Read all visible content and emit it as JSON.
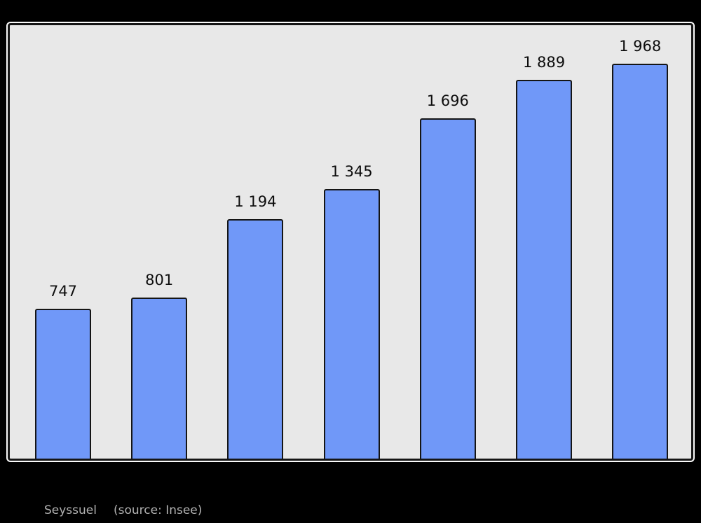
{
  "page": {
    "background": "#000000"
  },
  "chart_data": {
    "type": "bar",
    "title": "",
    "values": [
      747,
      801,
      1194,
      1345,
      1696,
      1889,
      1968
    ],
    "bar_labels": [
      "747",
      "801",
      "1 194",
      "1 345",
      "1 696",
      "1 889",
      "1 968"
    ],
    "ylim": [
      0,
      2160
    ],
    "xlabel": "",
    "ylabel": "",
    "grid": false,
    "legend": false,
    "axis_tick_labels_visible": false,
    "bar_color": "#7098f8",
    "bar_border_color": "#151515",
    "plot_background": "#e8e8e8",
    "frame_outline_color": "#fafafa",
    "label_color": "#0d0d0d"
  },
  "caption": {
    "place": "Seyssuel",
    "source": "(source: Insee)",
    "color": "#b2b2b2"
  }
}
